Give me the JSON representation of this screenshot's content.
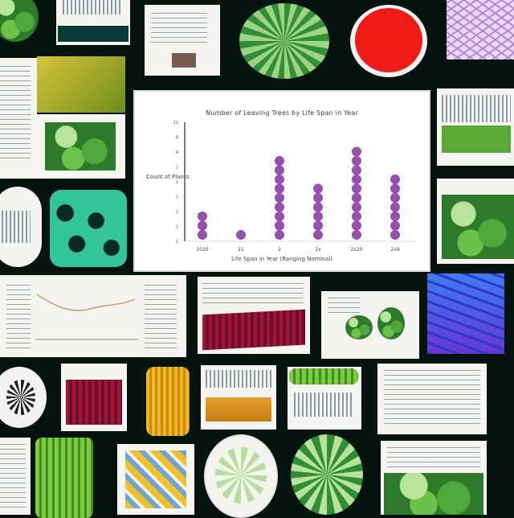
{
  "chart_data": {
    "type": "scatter",
    "title": "Number of Leaving Trees by Life Span in Year",
    "xlabel": "Life Span in Year (Ranging Nominal)",
    "ylabel": "Count of Plants",
    "categories": [
      "2020",
      "21",
      "2",
      "2x",
      "2x20",
      "2x9"
    ],
    "values": [
      3,
      1,
      9,
      6,
      10,
      7
    ],
    "ylim": [
      0,
      12
    ],
    "yticks": [
      "12",
      "8",
      "4",
      "2",
      "1",
      "1",
      "1",
      "1",
      "1"
    ],
    "color": "#8d3aa8"
  }
}
